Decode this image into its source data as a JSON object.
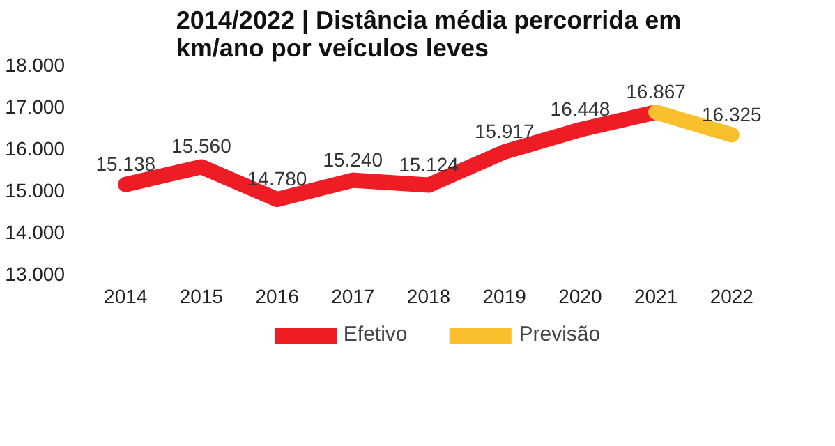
{
  "chart_data": {
    "type": "line",
    "title": "2014/2022 | Distância média percorrida em\nkm/ano por veículos leves",
    "categories": [
      "2014",
      "2015",
      "2016",
      "2017",
      "2018",
      "2019",
      "2020",
      "2021",
      "2022"
    ],
    "series": [
      {
        "name": "Efetivo",
        "color": "#ee1c25",
        "values": [
          15138,
          15560,
          14780,
          15240,
          15124,
          15917,
          16448,
          16867,
          null
        ],
        "value_labels": [
          "15.138",
          "15.560",
          "14.780",
          "15.240",
          "15.124",
          "15.917",
          "16.448",
          "16.867",
          null
        ]
      },
      {
        "name": "Previsão",
        "color": "#f9bf2d",
        "values": [
          null,
          null,
          null,
          null,
          null,
          null,
          null,
          16867,
          16325
        ],
        "value_labels": [
          null,
          null,
          null,
          null,
          null,
          null,
          null,
          null,
          "16.325"
        ]
      }
    ],
    "ylim": [
      13000,
      18000
    ],
    "yticks": [
      {
        "value": 13000,
        "label": "13.000"
      },
      {
        "value": 14000,
        "label": "14.000"
      },
      {
        "value": 15000,
        "label": "15.000"
      },
      {
        "value": 16000,
        "label": "16.000"
      },
      {
        "value": 17000,
        "label": "17.000"
      },
      {
        "value": 18000,
        "label": "18.000"
      }
    ],
    "grid": false,
    "legend": "bottom",
    "marker": "none",
    "line_style": "solid"
  }
}
